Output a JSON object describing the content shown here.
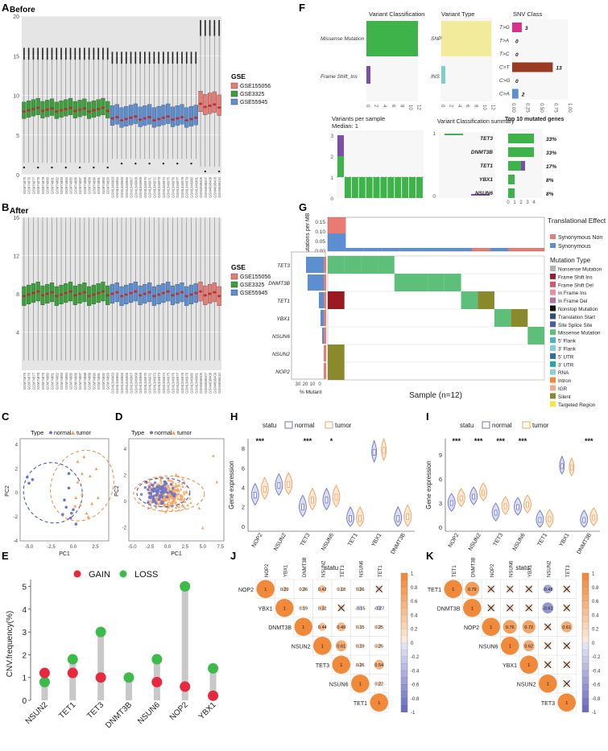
{
  "colors": {
    "gse155056": "#e87b74",
    "gse3325": "#3aa03a",
    "gse55945": "#5c8ed2",
    "box_bg": "#e5e5e5",
    "normal": "#6f76c8",
    "tumor": "#f3a25c",
    "gain": "#e8283c",
    "loss": "#3cba4a",
    "missense": "#3eb34a",
    "frameshift": "#7b4fa9",
    "snp": "#f3eb9c",
    "ins": "#7fcfc9",
    "c_g": "#d4318a",
    "c_t": "#9b3a22",
    "c_a": "#5b8fce",
    "olive": "#8a8a2c",
    "darkred": "#9a1a22",
    "corr_pos": "#f08a3a",
    "corr_neg": "#6c6cc0"
  },
  "panel_labels": [
    "A",
    "B",
    "C",
    "D",
    "E",
    "F",
    "G",
    "H",
    "I",
    "J",
    "K"
  ],
  "panelA": {
    "title": "Before",
    "legend_title": "GSE",
    "legend": [
      "GSE155056",
      "GSE3325",
      "GSE55945"
    ],
    "yticks": [
      "0",
      "5",
      "10",
      "15",
      "20"
    ],
    "ylim": [
      0,
      20
    ],
    "groups": [
      {
        "name": "GSE3325",
        "count": 19,
        "median": 8.2,
        "q1": 7.3,
        "q3": 9.4,
        "wlo": 1.5,
        "whi": 14.5,
        "top": 16.0
      },
      {
        "name": "GSE55945",
        "count": 19,
        "median": 7.1,
        "q1": 6.2,
        "q3": 8.7,
        "wlo": 2.0,
        "whi": 14.0,
        "top": 15.5
      },
      {
        "name": "GSE155056",
        "count": 5,
        "median": 8.7,
        "q1": 7.7,
        "q3": 10.3,
        "wlo": 1.0,
        "whi": 17.5,
        "top": 19.5
      }
    ],
    "samples": [
      "GSM74875",
      "GSM74876",
      "GSM74877",
      "GSM74878",
      "GSM74879",
      "GSM74880",
      "GSM74881",
      "GSM74882",
      "GSM74883",
      "GSM74884",
      "GSM74885",
      "GSM74886",
      "GSM74887",
      "GSM74888",
      "GSM74889",
      "GSM74890",
      "GSM74891",
      "GSM74892",
      "GSM74893",
      "GSM1346963",
      "GSM1346964",
      "GSM1346965",
      "GSM1346966",
      "GSM1346967",
      "GSM1346968",
      "GSM1346969",
      "GSM1346970",
      "GSM1346971",
      "GSM1346972",
      "GSM1346973",
      "GSM1346974",
      "GSM1346975",
      "GSM1346976",
      "GSM1346977",
      "GSM1346978",
      "GSM1346979",
      "GSM1346980",
      "GSM1346981",
      "GSM4698406",
      "GSM4698407",
      "GSM4698408",
      "GSM4698409",
      "GSM4698410"
    ]
  },
  "panelB": {
    "title": "After",
    "legend_title": "GSE",
    "legend": [
      "GSE155056",
      "GSE3325",
      "GSE55945"
    ],
    "yticks": [
      "4",
      "8",
      "12",
      "16"
    ],
    "ylim": [
      0,
      16
    ],
    "median": 8.0,
    "q1": 7.0,
    "q3": 9.0,
    "wlo": 1.0,
    "whi": 15.5,
    "top": 16.0
  },
  "panelC": {
    "legend_title": "Type",
    "legend": [
      "normal",
      "tumor"
    ],
    "xlabel": "PC1",
    "ylabel": "PC2",
    "xticks": [
      "-5.0",
      "-2.5",
      "0.0",
      "2.5"
    ],
    "yticks": [
      "-4",
      "-2",
      "0",
      "2",
      "4"
    ],
    "normal": [
      [
        -5.2,
        1.3
      ],
      [
        -5.0,
        0.8
      ],
      [
        -4.6,
        1.1
      ],
      [
        -1.0,
        -0.6
      ],
      [
        -0.8,
        -1.2
      ],
      [
        -0.5,
        0.4
      ],
      [
        -0.2,
        -1.7
      ],
      [
        0.0,
        -1.4
      ],
      [
        -0.5,
        1.6
      ],
      [
        0.3,
        -2.6
      ],
      [
        -1.2,
        -1.8
      ],
      [
        -0.3,
        -2.1
      ]
    ],
    "tumor": [
      [
        0.5,
        2.6
      ],
      [
        1.2,
        3.0
      ],
      [
        1.9,
        1.4
      ],
      [
        0.5,
        0.9
      ],
      [
        1.0,
        -0.1
      ],
      [
        2.6,
        2.0
      ],
      [
        0.2,
        -1.1
      ],
      [
        1.5,
        -1.7
      ],
      [
        1.7,
        -2.0
      ],
      [
        2.8,
        -0.4
      ],
      [
        1.0,
        1.6
      ],
      [
        0.3,
        -0.4
      ],
      [
        0.8,
        -1.0
      ],
      [
        2.1,
        -0.9
      ]
    ]
  },
  "panelD": {
    "legend_title": "Type",
    "legend": [
      "normal",
      "tumor"
    ],
    "xlabel": "PC1",
    "ylabel": "PC2",
    "xticks": [
      "-5.0",
      "-2.5",
      "0.0",
      "2.5",
      "5.0",
      "7.5"
    ],
    "yticks": [
      "-2",
      "0",
      "2",
      "4"
    ]
  },
  "panelE": {
    "ylabel": "CNV.frequency(%)",
    "legend": [
      "GAIN",
      "LOSS"
    ],
    "yticks": [
      "0",
      "1",
      "2",
      "3",
      "4",
      "5"
    ],
    "chart_data": {
      "type": "lollipop",
      "categories": [
        "NSUN2",
        "TET1",
        "TET3",
        "DNMT3B",
        "NSUN6",
        "NOP2",
        "YBX1"
      ],
      "series": [
        {
          "name": "GAIN",
          "values": [
            1.2,
            1.2,
            1.0,
            0.0,
            0.8,
            0.6,
            0.2
          ]
        },
        {
          "name": "LOSS",
          "values": [
            0.8,
            1.8,
            3.0,
            1.0,
            1.8,
            5.0,
            1.4
          ]
        }
      ],
      "ylim": [
        0,
        5.3
      ]
    }
  },
  "panelF": {
    "vc_title": "Variant Classification",
    "vt_title": "Variant Type",
    "snv_title": "SNV Class",
    "vc_labels": [
      "Missense Mutation",
      "Frame Shift_Ins"
    ],
    "vt_labels": [
      "SNP",
      "INS"
    ],
    "vc_ticks": [
      "0",
      "2",
      "4",
      "6",
      "8",
      "10",
      "12"
    ],
    "vt_ticks": [
      "0",
      "2",
      "4",
      "6",
      "8",
      "10",
      "12"
    ],
    "snv_labels": [
      "T>G",
      "T>A",
      "T>C",
      "C>T",
      "C>G",
      "C>A"
    ],
    "snv_values": [
      "3",
      "0",
      "0",
      "13",
      "0",
      "2"
    ],
    "snv_fracs": [
      0.17,
      0,
      0,
      0.72,
      0,
      0.11
    ],
    "snv_ticks": [
      "0.00",
      "0.25",
      "0.50",
      "0.75",
      "1.00"
    ],
    "vps_title": "Variants per sample",
    "vps_median": "Median: 1",
    "vps_yticks": [
      "0",
      "1",
      "2",
      "3"
    ],
    "vcs_title": "Variant Classification summary",
    "vcs_yticks": [
      "0",
      "1"
    ],
    "top10_title": "Top 10 mutated genes",
    "genes": [
      "TET3",
      "DNMT3B",
      "TET1",
      "YBX1",
      "NSUN6"
    ],
    "gene_pct": [
      "33%",
      "33%",
      "17%",
      "8%",
      "8%"
    ],
    "gene_ticks": [
      "0",
      "1",
      "2",
      "3",
      "4"
    ]
  },
  "panelG": {
    "ylabel": "Mutations per MB",
    "yticks": [
      "0.00",
      "0.05",
      "0.10",
      "0.15"
    ],
    "legend_title": "Translational Effect",
    "te": [
      "Synonymous Non",
      "Synonymous"
    ],
    "genes": [
      "TET3",
      "DNMT3B",
      "TET1",
      "YBX1",
      "NSUN6",
      "NSUN2",
      "NOP2"
    ],
    "pct_ticks": [
      "30",
      "20",
      "10",
      "0"
    ],
    "pct_label": "% Mutant",
    "xlabel": "Sample (n=12)",
    "mt_title": "Mutation Type",
    "mt_items": [
      {
        "label": "Nonsense Mutation",
        "color": "#b3b3b3"
      },
      {
        "label": "Frame Shift Ins",
        "color": "#9b1b30"
      },
      {
        "label": "Frame Shift Del",
        "color": "#d8556a"
      },
      {
        "label": "In Frame Ins",
        "color": "#e58fa0"
      },
      {
        "label": "In Frame Del",
        "color": "#b86f9e"
      },
      {
        "label": "Nonstop Mutation",
        "color": "#111111"
      },
      {
        "label": "Translation Start",
        "color": "#2f4e7e"
      },
      {
        "label": "Site Splice Site",
        "color": "#4a59a8"
      },
      {
        "label": "Missense Mutation",
        "color": "#5dbf7a"
      },
      {
        "label": "5' Flank",
        "color": "#4bb3c8"
      },
      {
        "label": "3' Flank",
        "color": "#7fcbe0"
      },
      {
        "label": "5' UTR",
        "color": "#2a6f9e"
      },
      {
        "label": "3' UTR",
        "color": "#2aa3a8"
      },
      {
        "label": "RNA",
        "color": "#8ccfd8"
      },
      {
        "label": "Intron",
        "color": "#f08a3a"
      },
      {
        "label": "IGR",
        "color": "#f4a88c"
      },
      {
        "label": "Silent",
        "color": "#8a8a2c"
      },
      {
        "label": "Targeted Region",
        "color": "#f4e83c"
      }
    ]
  },
  "panelH": {
    "legend_title": "statu",
    "legend": [
      "normal",
      "tumor"
    ],
    "ylabel": "Gene expression",
    "xlabel": "statu",
    "yticks": [
      "0",
      "2",
      "4",
      "6",
      "8"
    ],
    "ylim": [
      -0.5,
      9
    ],
    "genes": [
      "NOP2",
      "NSUN2",
      "TET3",
      "NSUN6",
      "TET1",
      "YBX1",
      "DNMT3B"
    ],
    "stars": [
      "***",
      "",
      "***",
      "*",
      "",
      "",
      ""
    ],
    "chart_data": {
      "type": "violin",
      "normal_medians": [
        3.2,
        4.2,
        2.0,
        2.7,
        0.8,
        7.6,
        0.8
      ],
      "tumor_medians": [
        3.8,
        4.3,
        2.7,
        3.0,
        0.8,
        7.8,
        1.0
      ]
    }
  },
  "panelI": {
    "legend_title": "statu",
    "legend": [
      "normal",
      "tumor"
    ],
    "ylabel": "Gene expression",
    "xlabel": "statu",
    "yticks": [
      "0",
      "3",
      "6",
      "9"
    ],
    "ylim": [
      -0.5,
      11
    ],
    "genes": [
      "NOP2",
      "NSUN2",
      "TET3",
      "NSUN6",
      "TET1",
      "YBX1",
      "DNMT3B"
    ],
    "stars": [
      "***",
      "***",
      "***",
      "***",
      "",
      "",
      "***"
    ],
    "chart_data": {
      "type": "violin",
      "normal_medians": [
        3.0,
        3.8,
        1.8,
        2.5,
        0.9,
        7.6,
        0.9
      ],
      "tumor_medians": [
        3.6,
        4.3,
        2.6,
        2.8,
        1.0,
        7.4,
        1.2
      ]
    }
  },
  "panelJ": {
    "genes": [
      "NOP2",
      "YBX1",
      "DNMT3B",
      "NSUN2",
      "TET3",
      "NSUN6",
      "TET1"
    ],
    "legend_ticks": [
      "1",
      "0.8",
      "0.6",
      "0.4",
      "0.2",
      "0",
      "-0.2",
      "-0.4",
      "-0.6",
      "-0.8",
      "-1"
    ],
    "chart_data": {
      "type": "heatmap",
      "cells": [
        [
          "1",
          "0.29",
          "0.26",
          "0.42",
          "0.18",
          "0.26",
          "x"
        ],
        [
          "",
          "1",
          "0.19",
          "0.32",
          "x",
          "-0.15",
          "-0.27"
        ],
        [
          "",
          "",
          "1",
          "0.44",
          "0.49",
          "0.15",
          "0.25"
        ],
        [
          "",
          "",
          "",
          "1",
          "0.61",
          "0.19",
          "0.25"
        ],
        [
          "",
          "",
          "",
          "",
          "1",
          "0.26",
          "0.54"
        ],
        [
          "",
          "",
          "",
          "",
          "",
          "1",
          "0.22"
        ],
        [
          "",
          "",
          "",
          "",
          "",
          "",
          "1"
        ]
      ]
    }
  },
  "panelK": {
    "genes": [
      "TET1",
      "DNMT3B",
      "NOP2",
      "NSUN6",
      "YBX1",
      "NSUN2",
      "TET3"
    ],
    "legend_ticks": [
      "1",
      "0.8",
      "0.6",
      "0.4",
      "0.2",
      "0",
      "-0.2",
      "-0.4",
      "-0.6",
      "-0.8",
      "-1"
    ],
    "chart_data": {
      "type": "heatmap",
      "cells": [
        [
          "1",
          "0.79",
          "x",
          "x",
          "x",
          "-0.48",
          "x"
        ],
        [
          "",
          "1",
          "x",
          "x",
          "x",
          "-0.61",
          "x"
        ],
        [
          "",
          "",
          "1",
          "0.76",
          "0.72",
          "x",
          "0.61"
        ],
        [
          "",
          "",
          "",
          "1",
          "0.62",
          "x",
          "x"
        ],
        [
          "",
          "",
          "",
          "",
          "1",
          "x",
          "x"
        ],
        [
          "",
          "",
          "",
          "",
          "",
          "1",
          "x"
        ],
        [
          "",
          "",
          "",
          "",
          "",
          "",
          "1"
        ]
      ]
    }
  }
}
